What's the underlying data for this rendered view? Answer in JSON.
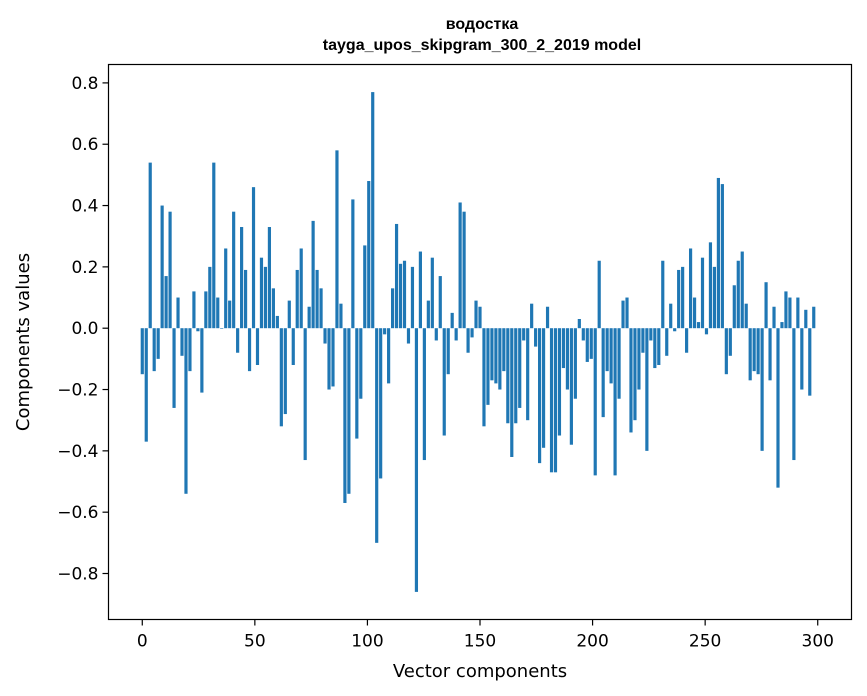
{
  "chart_data": {
    "type": "bar",
    "title_line1": "водостка",
    "title_line2": "tayga_upos_skipgram_300_2_2019 model",
    "xlabel": "Vector components",
    "ylabel": "Components values",
    "xlim": [
      -15,
      315
    ],
    "ylim": [
      -0.95,
      0.86
    ],
    "xticks": [
      0,
      50,
      100,
      150,
      200,
      250,
      300
    ],
    "xtick_labels": [
      "0",
      "50",
      "100",
      "150",
      "200",
      "250",
      "300"
    ],
    "yticks": [
      -0.8,
      -0.6,
      -0.4,
      -0.2,
      0.0,
      0.2,
      0.4,
      0.6,
      0.8
    ],
    "ytick_labels": [
      "−0.8",
      "−0.6",
      "−0.4",
      "−0.2",
      "0.0",
      "0.2",
      "0.4",
      "0.6",
      "0.8"
    ],
    "bar_color": "#1f77b4",
    "grid": false,
    "values": [
      -0.15,
      -0.37,
      0.54,
      -0.14,
      -0.1,
      0.4,
      0.17,
      0.38,
      -0.26,
      0.1,
      -0.09,
      -0.54,
      -0.14,
      0.12,
      -0.01,
      -0.21,
      0.12,
      0.2,
      0.54,
      0.1,
      0.0,
      0.26,
      0.09,
      0.38,
      -0.08,
      0.33,
      0.19,
      -0.14,
      0.46,
      -0.12,
      0.23,
      0.2,
      0.33,
      0.13,
      0.04,
      -0.32,
      -0.28,
      0.09,
      -0.12,
      0.19,
      0.26,
      -0.43,
      0.07,
      0.35,
      0.19,
      0.13,
      -0.05,
      -0.2,
      -0.19,
      0.58,
      0.08,
      -0.57,
      -0.54,
      0.42,
      -0.36,
      -0.23,
      0.27,
      0.48,
      0.77,
      -0.7,
      -0.49,
      -0.02,
      -0.18,
      0.13,
      0.34,
      0.21,
      0.22,
      -0.05,
      0.2,
      -0.86,
      0.25,
      -0.43,
      0.09,
      0.23,
      -0.04,
      0.17,
      -0.35,
      -0.15,
      0.05,
      -0.04,
      0.41,
      0.38,
      -0.08,
      -0.03,
      0.09,
      0.07,
      -0.32,
      -0.25,
      -0.17,
      -0.18,
      -0.2,
      -0.14,
      -0.31,
      -0.42,
      -0.31,
      -0.26,
      -0.04,
      -0.3,
      0.08,
      -0.06,
      -0.44,
      -0.39,
      0.07,
      -0.47,
      -0.47,
      -0.35,
      -0.13,
      -0.2,
      -0.38,
      -0.23,
      0.03,
      -0.04,
      -0.11,
      -0.1,
      -0.48,
      0.22,
      -0.29,
      -0.14,
      -0.18,
      -0.48,
      -0.23,
      0.09,
      0.1,
      -0.34,
      -0.3,
      -0.2,
      -0.08,
      -0.4,
      -0.04,
      -0.13,
      -0.12,
      0.22,
      -0.09,
      0.08,
      -0.01,
      0.19,
      0.2,
      -0.08,
      0.26,
      0.1,
      0.02,
      0.23,
      -0.02,
      0.28,
      0.2,
      0.49,
      0.47,
      -0.15,
      -0.09,
      0.14,
      0.22,
      0.25,
      0.08,
      -0.17,
      -0.14,
      -0.15,
      -0.4,
      0.15,
      -0.17,
      0.07,
      -0.52,
      0.02,
      0.12,
      0.1,
      -0.43,
      0.1,
      -0.2,
      0.06,
      -0.22,
      0.07
    ]
  }
}
